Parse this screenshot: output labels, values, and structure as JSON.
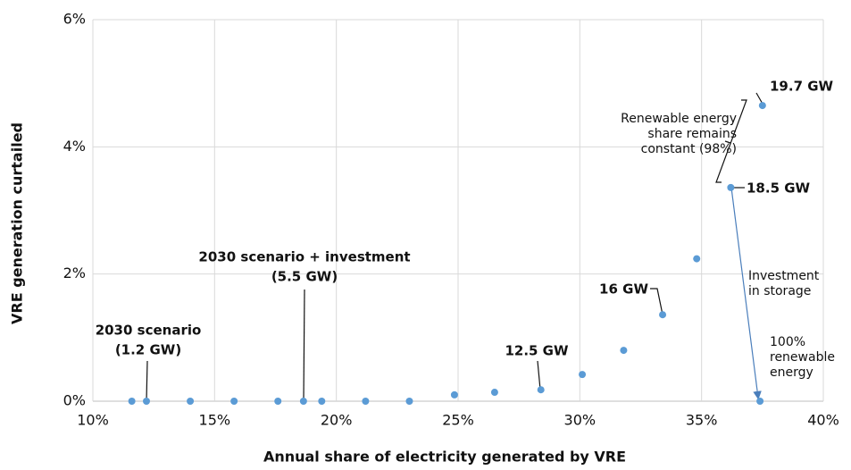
{
  "chart_data": {
    "type": "scatter",
    "x_label": "Annual share of electricity generated by VRE",
    "y_label": "VRE generation curtailed",
    "color": "#5b9bd5",
    "grid": true,
    "x": [
      11.6,
      12.2,
      14.0,
      15.8,
      17.6,
      18.65,
      19.4,
      21.2,
      23.0,
      24.85,
      26.5,
      28.4,
      30.1,
      31.8,
      33.4,
      34.8,
      36.2,
      37.5,
      37.4
    ],
    "values": [
      0,
      0,
      0,
      0,
      0,
      0,
      0,
      0,
      0,
      0.1,
      0.14,
      0.18,
      0.42,
      0.8,
      1.36,
      2.24,
      3.36,
      4.65,
      0
    ],
    "xlim": [
      10,
      40
    ],
    "xticks": [
      {
        "value": 10,
        "label": "10%"
      },
      {
        "value": 15,
        "label": "15%"
      },
      {
        "value": 20,
        "label": "20%"
      },
      {
        "value": 25,
        "label": "25%"
      },
      {
        "value": 30,
        "label": "30%"
      },
      {
        "value": 35,
        "label": "35%"
      },
      {
        "value": 40,
        "label": "40%"
      }
    ],
    "ylim": [
      0,
      6
    ],
    "yticks": [
      {
        "value": 0,
        "label": "0%"
      },
      {
        "value": 2,
        "label": "2%"
      },
      {
        "value": 4,
        "label": "4%"
      },
      {
        "value": 6,
        "label": "6%"
      }
    ],
    "annotations": [
      {
        "lines": [
          "19.7 GW"
        ]
      },
      {
        "lines": [
          "18.5 GW"
        ]
      },
      {
        "lines": [
          "16 GW"
        ]
      },
      {
        "lines": [
          "12.5 GW"
        ]
      },
      {
        "lines": [
          "2030 scenario + investment",
          "(5.5 GW)"
        ]
      },
      {
        "lines": [
          "2030 scenario",
          "(1.2 GW)"
        ]
      },
      {
        "lines": [
          "Renewable energy",
          "share remains",
          "constant (98%)"
        ]
      },
      {
        "lines": [
          "Investment",
          "in storage"
        ]
      },
      {
        "lines": [
          "100%",
          "renewable",
          "energy"
        ]
      }
    ]
  }
}
